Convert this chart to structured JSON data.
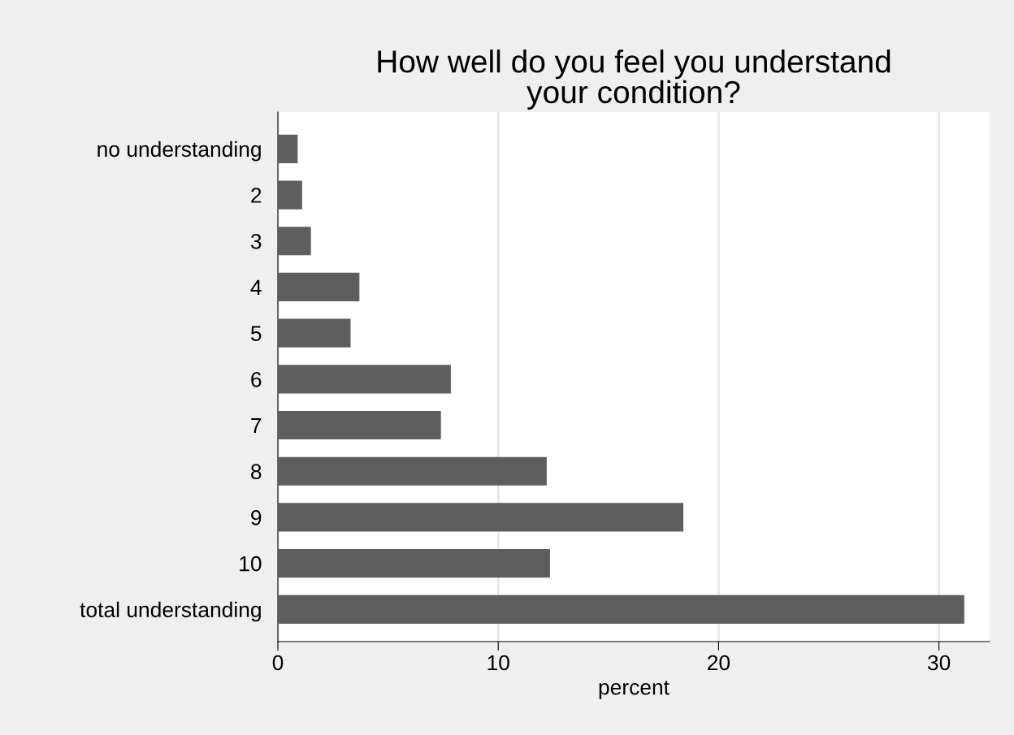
{
  "chart_data": {
    "type": "bar",
    "orientation": "horizontal",
    "title": "How well do you feel you understand\nyour condition?",
    "xlabel": "percent",
    "categories": [
      "no understanding",
      "2",
      "3",
      "4",
      "5",
      "6",
      "7",
      "8",
      "9",
      "10",
      "total understanding"
    ],
    "values": [
      0.9,
      1.1,
      1.5,
      3.7,
      3.3,
      7.85,
      7.4,
      12.2,
      18.4,
      12.35,
      31.15
    ],
    "color": "#5e5e5e",
    "xlim": [
      0,
      32.3
    ],
    "xticks": [
      0,
      10,
      20,
      30
    ],
    "grid": "x",
    "legend": false
  }
}
